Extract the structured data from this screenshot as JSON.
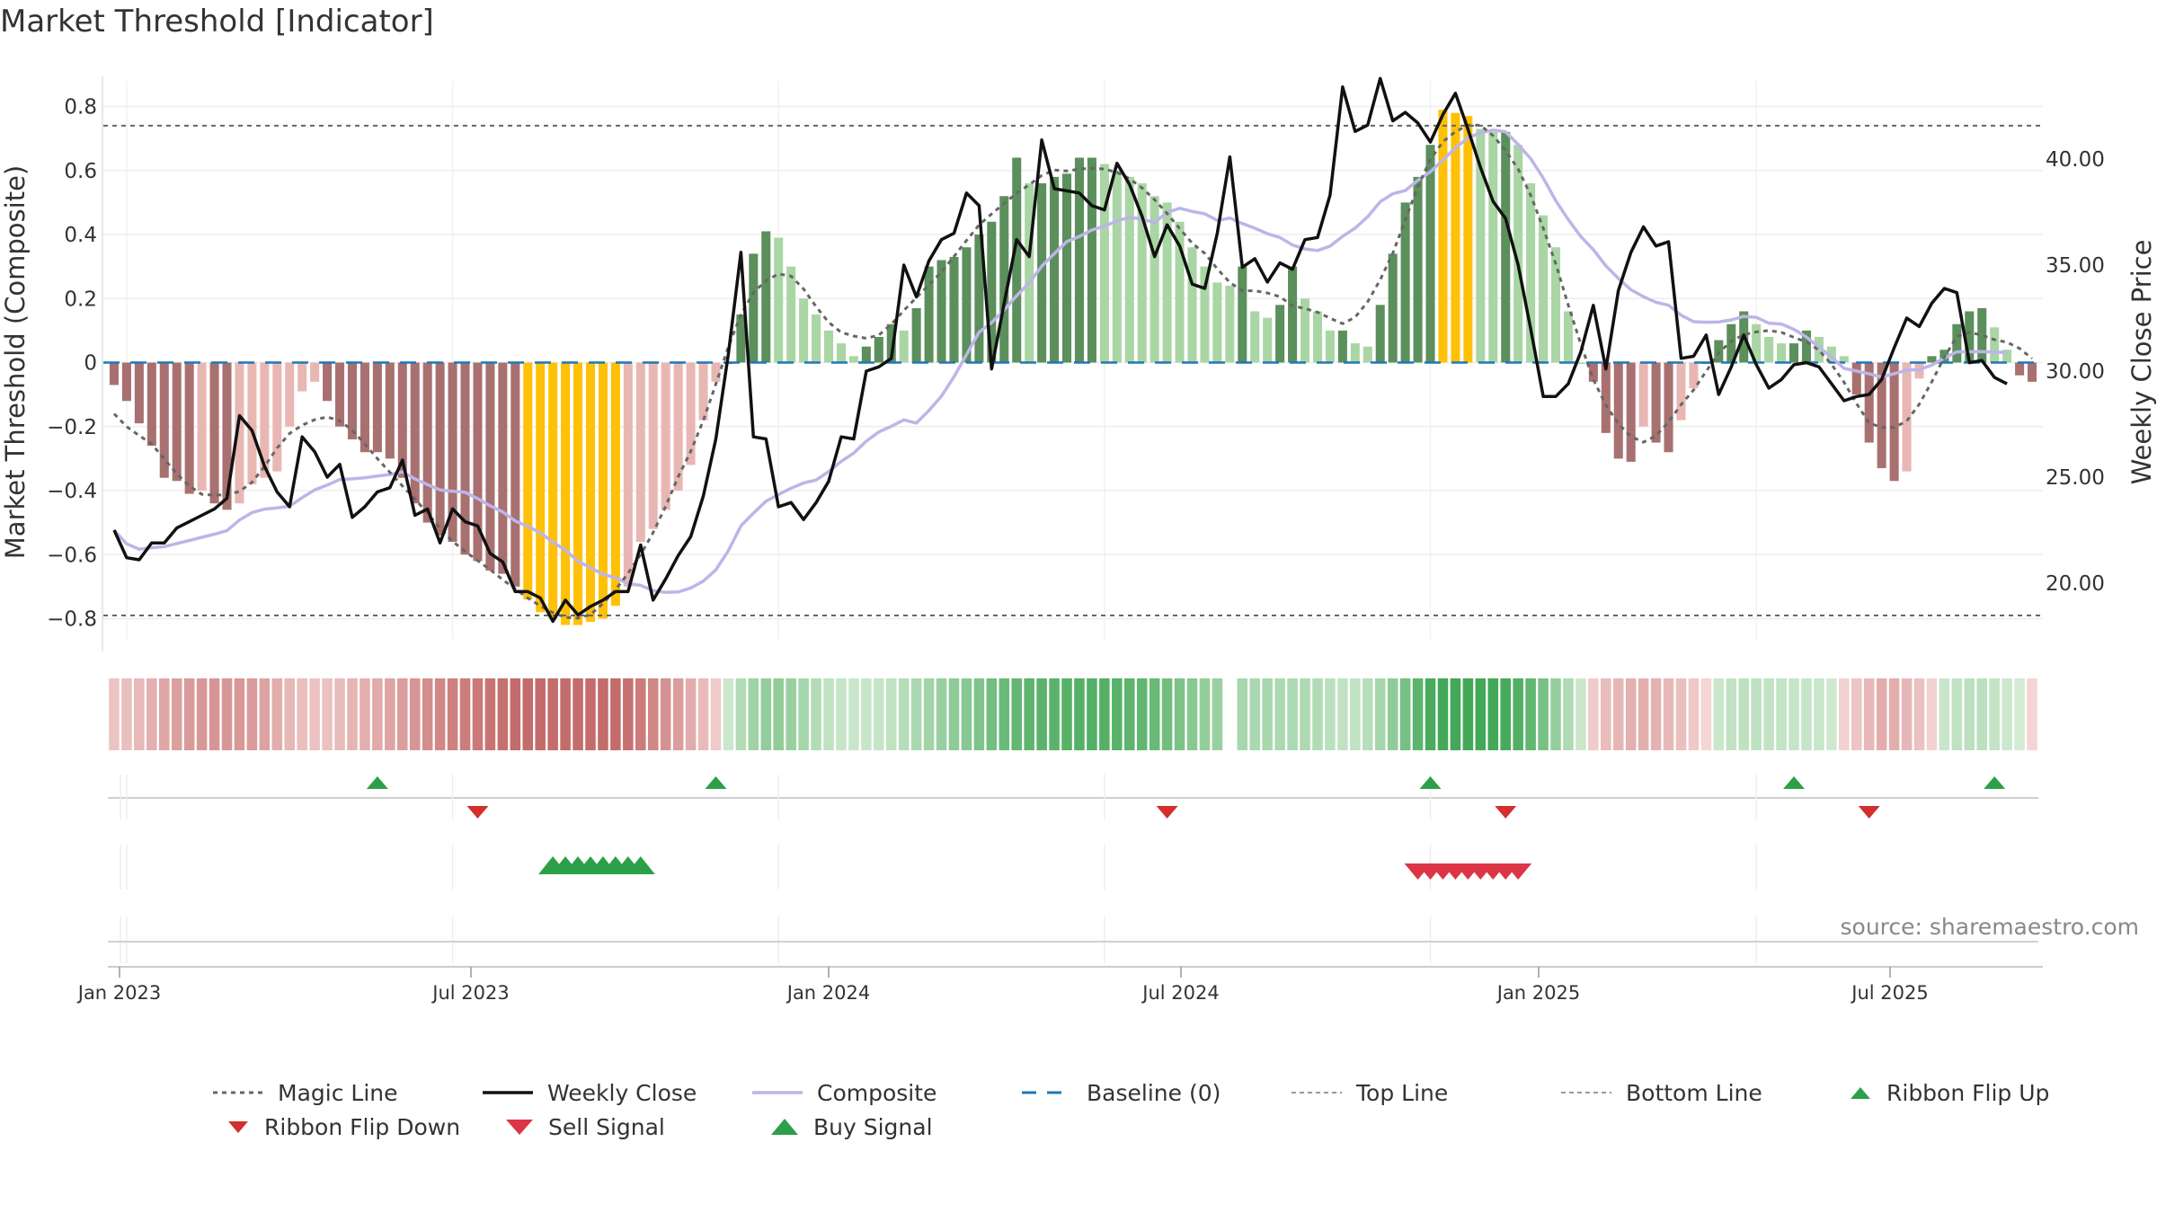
{
  "title": "Market Threshold [Indicator]",
  "source": "source: sharemaestro.com",
  "colors": {
    "up_dark": "#5b8f5c",
    "up_light": "#a9d6a4",
    "down_dark": "#a97070",
    "down_light": "#e9b7b3",
    "extreme": "#ffc107",
    "weekly_close": "#111111",
    "composite": "#bdb5e8",
    "magic": "#666666",
    "baseline": "#1f77b4",
    "buy": "#2ca048",
    "sell": "#d32f2f"
  },
  "chart_data": {
    "type": "bar",
    "title": "Market Threshold [Indicator]",
    "ylabel": "Market Threshold (Composite)",
    "y2label": "Weekly Close Price",
    "ylim": [
      -0.9,
      0.82
    ],
    "y2lim": [
      17.5,
      44.5
    ],
    "y_ticks": [
      "0.8",
      "0.6",
      "0.4",
      "0.2",
      "0",
      "−0.2",
      "−0.4",
      "−0.6",
      "−0.8"
    ],
    "y2_ticks": [
      "40.00",
      "35.00",
      "30.00",
      "25.00",
      "20.00"
    ],
    "date_ticks": [
      "Jan 2023",
      "Jul 2023",
      "Jan 2024",
      "Jul 2024",
      "Jan 2025",
      "Jul 2025"
    ],
    "date_tick_weeks": [
      1,
      27,
      53,
      79,
      105,
      131
    ],
    "top_line": 0.74,
    "bottom_line": -0.79,
    "composite_bars": [
      -0.07,
      -0.12,
      -0.19,
      -0.26,
      -0.36,
      -0.37,
      -0.41,
      -0.4,
      -0.44,
      -0.46,
      -0.44,
      -0.38,
      -0.36,
      -0.34,
      -0.2,
      -0.09,
      -0.06,
      -0.12,
      -0.2,
      -0.24,
      -0.28,
      -0.28,
      -0.3,
      -0.36,
      -0.44,
      -0.5,
      -0.54,
      -0.56,
      -0.6,
      -0.62,
      -0.65,
      -0.66,
      -0.7,
      -0.74,
      -0.78,
      -0.8,
      -0.82,
      -0.82,
      -0.81,
      -0.8,
      -0.76,
      -0.7,
      -0.56,
      -0.52,
      -0.46,
      -0.4,
      -0.32,
      -0.18,
      -0.06,
      0.0,
      0.15,
      0.34,
      0.41,
      0.39,
      0.3,
      0.2,
      0.15,
      0.1,
      0.06,
      0.02,
      0.05,
      0.08,
      0.12,
      0.1,
      0.17,
      0.3,
      0.32,
      0.33,
      0.36,
      0.4,
      0.44,
      0.52,
      0.64,
      0.56,
      0.56,
      0.58,
      0.59,
      0.64,
      0.64,
      0.62,
      0.6,
      0.58,
      0.56,
      0.52,
      0.5,
      0.44,
      0.36,
      0.3,
      0.25,
      0.24,
      0.3,
      0.16,
      0.14,
      0.18,
      0.3,
      0.2,
      0.16,
      0.1,
      0.1,
      0.06,
      0.05,
      0.18,
      0.34,
      0.5,
      0.58,
      0.68,
      0.79,
      0.78,
      0.77,
      0.73,
      0.72,
      0.72,
      0.68,
      0.56,
      0.46,
      0.36,
      0.16,
      0.0,
      -0.06,
      -0.22,
      -0.3,
      -0.31,
      -0.2,
      -0.25,
      -0.28,
      -0.18,
      -0.08,
      0.0,
      0.07,
      0.12,
      0.16,
      0.12,
      0.08,
      0.06,
      0.06,
      0.1,
      0.08,
      0.05,
      0.02,
      -0.1,
      -0.25,
      -0.33,
      -0.37,
      -0.34,
      -0.05,
      0.02,
      0.04,
      0.12,
      0.16,
      0.17,
      0.11,
      0.04,
      -0.04,
      -0.06
    ],
    "weekly_close": [
      22.5,
      21.2,
      21.1,
      21.9,
      21.9,
      22.6,
      22.9,
      23.2,
      23.5,
      24.0,
      27.9,
      27.2,
      25.5,
      24.3,
      23.6,
      26.9,
      26.2,
      25.0,
      25.6,
      23.1,
      23.6,
      24.3,
      24.5,
      25.8,
      23.2,
      23.5,
      21.9,
      23.5,
      22.9,
      22.7,
      21.4,
      21.0,
      19.6,
      19.6,
      19.3,
      18.2,
      19.2,
      18.5,
      18.9,
      19.2,
      19.6,
      19.6,
      21.8,
      19.2,
      20.2,
      21.3,
      22.2,
      24.1,
      26.8,
      30.8,
      35.6,
      26.9,
      26.8,
      23.6,
      23.8,
      23.0,
      23.8,
      24.8,
      26.9,
      26.8,
      30.0,
      30.2,
      30.6,
      35.0,
      33.5,
      35.2,
      36.2,
      36.5,
      38.4,
      37.8,
      30.1,
      33.2,
      36.2,
      35.4,
      40.9,
      38.6,
      38.5,
      38.4,
      37.8,
      37.6,
      39.8,
      38.8,
      37.3,
      35.4,
      36.9,
      35.9,
      34.1,
      33.9,
      36.5,
      40.1,
      34.9,
      35.3,
      34.2,
      35.1,
      34.8,
      36.2,
      36.3,
      38.3,
      43.4,
      41.3,
      41.6,
      43.8,
      41.8,
      42.2,
      41.7,
      40.8,
      42.1,
      43.1,
      41.4,
      39.6,
      38.0,
      37.2,
      35.0,
      32.0,
      28.8,
      28.8,
      29.4,
      30.9,
      33.1,
      30.1,
      33.8,
      35.6,
      36.8,
      35.9,
      36.1,
      30.6,
      30.7,
      31.7,
      28.9,
      30.2,
      31.7,
      30.3,
      29.2,
      29.6,
      30.3,
      30.4,
      30.2,
      29.4,
      28.6,
      28.8,
      28.9,
      29.6,
      31.1,
      32.5,
      32.1,
      33.2,
      33.9,
      33.7,
      30.4,
      30.5,
      29.7,
      29.4
    ]
  },
  "ribbon_flips": {
    "up_weeks": [
      21,
      48,
      105,
      134,
      150
    ],
    "down_weeks": [
      29,
      84,
      111,
      140
    ]
  },
  "signals": {
    "buy_weeks": [
      35,
      36,
      37,
      38,
      39,
      40,
      41,
      42
    ],
    "sell_weeks": [
      104,
      105,
      106,
      107,
      108,
      109,
      110,
      111,
      112
    ]
  },
  "legend": [
    {
      "key": "magic",
      "label": "Magic Line"
    },
    {
      "key": "close",
      "label": "Weekly Close"
    },
    {
      "key": "composite",
      "label": "Composite"
    },
    {
      "key": "baseline",
      "label": "Baseline (0)"
    },
    {
      "key": "top",
      "label": "Top Line"
    },
    {
      "key": "bottom",
      "label": "Bottom Line"
    },
    {
      "key": "flip_up",
      "label": "Ribbon Flip Up"
    },
    {
      "key": "flip_down",
      "label": "Ribbon Flip Down"
    },
    {
      "key": "sell",
      "label": "Sell Signal"
    },
    {
      "key": "buy",
      "label": "Buy Signal"
    }
  ]
}
